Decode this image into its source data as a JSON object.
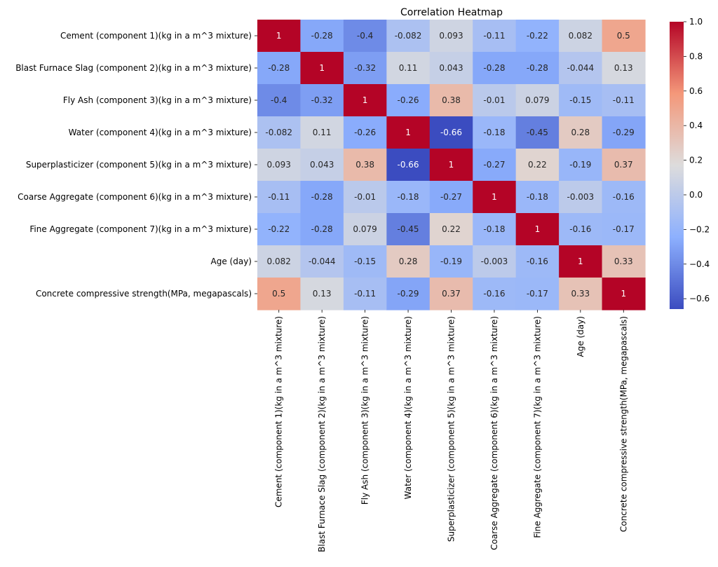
{
  "chart_data": {
    "type": "heatmap",
    "title": "Correlation Heatmap",
    "row_labels": [
      "Cement (component 1)(kg in a m^3 mixture)",
      "Blast Furnace Slag (component 2)(kg in a m^3 mixture)",
      "Fly Ash (component 3)(kg in a m^3 mixture)",
      "Water  (component 4)(kg in a m^3 mixture)",
      "Superplasticizer (component 5)(kg in a m^3 mixture)",
      "Coarse Aggregate  (component 6)(kg in a m^3 mixture)",
      "Fine Aggregate (component 7)(kg in a m^3 mixture)",
      "Age (day)",
      "Concrete compressive strength(MPa, megapascals) "
    ],
    "col_labels": [
      "Cement (component 1)(kg in a m^3 mixture)",
      "Blast Furnace Slag (component 2)(kg in a m^3 mixture)",
      "Fly Ash (component 3)(kg in a m^3 mixture)",
      "Water  (component 4)(kg in a m^3 mixture)",
      "Superplasticizer (component 5)(kg in a m^3 mixture)",
      "Coarse Aggregate  (component 6)(kg in a m^3 mixture)",
      "Fine Aggregate (component 7)(kg in a m^3 mixture)",
      "Age (day)",
      "Concrete compressive strength(MPa, megapascals) "
    ],
    "values": [
      [
        1,
        -0.28,
        -0.4,
        -0.082,
        0.093,
        -0.11,
        -0.22,
        0.082,
        0.5
      ],
      [
        -0.28,
        1,
        -0.32,
        0.11,
        0.043,
        -0.28,
        -0.28,
        -0.044,
        0.13
      ],
      [
        -0.4,
        -0.32,
        1,
        -0.26,
        0.38,
        -0.01,
        0.079,
        -0.15,
        -0.11
      ],
      [
        -0.082,
        0.11,
        -0.26,
        1,
        -0.66,
        -0.18,
        -0.45,
        0.28,
        -0.29
      ],
      [
        0.093,
        0.043,
        0.38,
        -0.66,
        1,
        -0.27,
        0.22,
        -0.19,
        0.37
      ],
      [
        -0.11,
        -0.28,
        -0.01,
        -0.18,
        -0.27,
        1,
        -0.18,
        -0.003,
        -0.16
      ],
      [
        -0.22,
        -0.28,
        0.079,
        -0.45,
        0.22,
        -0.18,
        1,
        -0.16,
        -0.17
      ],
      [
        0.082,
        -0.044,
        -0.15,
        0.28,
        -0.19,
        -0.003,
        -0.16,
        1,
        0.33
      ],
      [
        0.5,
        0.13,
        -0.11,
        -0.29,
        0.37,
        -0.16,
        -0.17,
        0.33,
        1
      ]
    ],
    "annotations": [
      [
        "1",
        "-0.28",
        "-0.4",
        "-0.082",
        "0.093",
        "-0.11",
        "-0.22",
        "0.082",
        "0.5"
      ],
      [
        "-0.28",
        "1",
        "-0.32",
        "0.11",
        "0.043",
        "-0.28",
        "-0.28",
        "-0.044",
        "0.13"
      ],
      [
        "-0.4",
        "-0.32",
        "1",
        "-0.26",
        "0.38",
        "-0.01",
        "0.079",
        "-0.15",
        "-0.11"
      ],
      [
        "-0.082",
        "0.11",
        "-0.26",
        "1",
        "-0.66",
        "-0.18",
        "-0.45",
        "0.28",
        "-0.29"
      ],
      [
        "0.093",
        "0.043",
        "0.38",
        "-0.66",
        "1",
        "-0.27",
        "0.22",
        "-0.19",
        "0.37"
      ],
      [
        "-0.11",
        "-0.28",
        "-0.01",
        "-0.18",
        "-0.27",
        "1",
        "-0.18",
        "-0.003",
        "-0.16"
      ],
      [
        "-0.22",
        "-0.28",
        "0.079",
        "-0.45",
        "0.22",
        "-0.18",
        "1",
        "-0.16",
        "-0.17"
      ],
      [
        "0.082",
        "-0.044",
        "-0.15",
        "0.28",
        "-0.19",
        "-0.003",
        "-0.16",
        "1",
        "0.33"
      ],
      [
        "0.5",
        "0.13",
        "-0.11",
        "-0.29",
        "0.37",
        "-0.16",
        "-0.17",
        "0.33",
        "1"
      ]
    ],
    "colormap": "coolwarm",
    "colormap_stops": [
      "#3b4cc0",
      "#8db0fe",
      "#dddcdc",
      "#f4987a",
      "#b40426"
    ],
    "vmin": -0.66,
    "vmax": 1.0,
    "colorbar_ticks": [
      1.0,
      0.8,
      0.6,
      0.4,
      0.2,
      0.0,
      -0.2,
      -0.4,
      -0.6
    ],
    "colorbar_tick_labels": [
      "1.0",
      "0.8",
      "0.6",
      "0.4",
      "0.2",
      "0.0",
      "−0.2",
      "−0.4",
      "−0.6"
    ],
    "xlabel": "",
    "ylabel": "",
    "legend": "colorbar right"
  }
}
